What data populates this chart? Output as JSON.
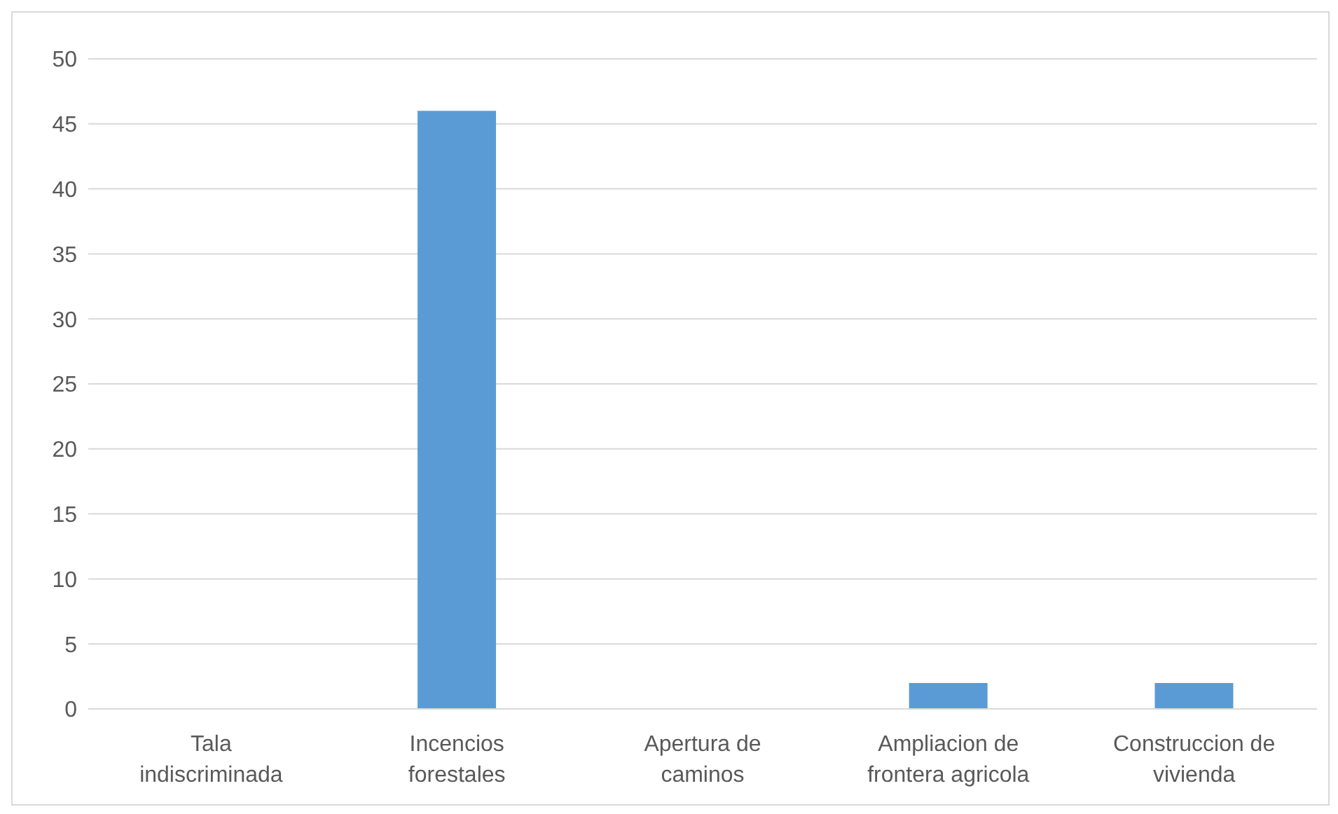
{
  "chart_data": {
    "type": "bar",
    "categories": [
      "Tala indiscriminada",
      "Incencios forestales",
      "Apertura de caminos",
      "Ampliacion de frontera agricola",
      "Construccion de vivienda"
    ],
    "values": [
      0,
      46,
      0,
      2,
      2
    ],
    "color": "#5b9bd5",
    "ylim": [
      0,
      50
    ],
    "yticks": [
      0,
      5,
      10,
      15,
      20,
      25,
      30,
      35,
      40,
      45,
      50
    ],
    "grid": "y",
    "legend": false
  }
}
